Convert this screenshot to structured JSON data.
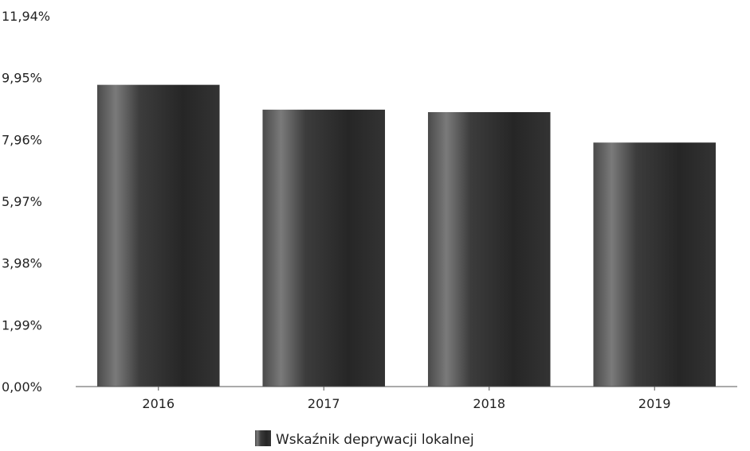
{
  "chart_data": {
    "type": "bar",
    "categories": [
      "2016",
      "2017",
      "2018",
      "2019"
    ],
    "series": [
      {
        "name": "Wskaźnik deprywacji lokalnej",
        "values": [
          9.72,
          8.92,
          8.84,
          7.86
        ]
      }
    ],
    "ylim": [
      0,
      11.94
    ],
    "yticks": [
      0,
      1.99,
      3.98,
      5.97,
      7.96,
      9.95,
      11.94
    ],
    "ytick_labels": [
      "0,00%",
      "1,99%",
      "3,98%",
      "5,97%",
      "7,96%",
      "9,95%",
      "11,94%"
    ],
    "grid": false,
    "legend_position": "bottom-center",
    "bar_color": "#2e2e2e"
  }
}
